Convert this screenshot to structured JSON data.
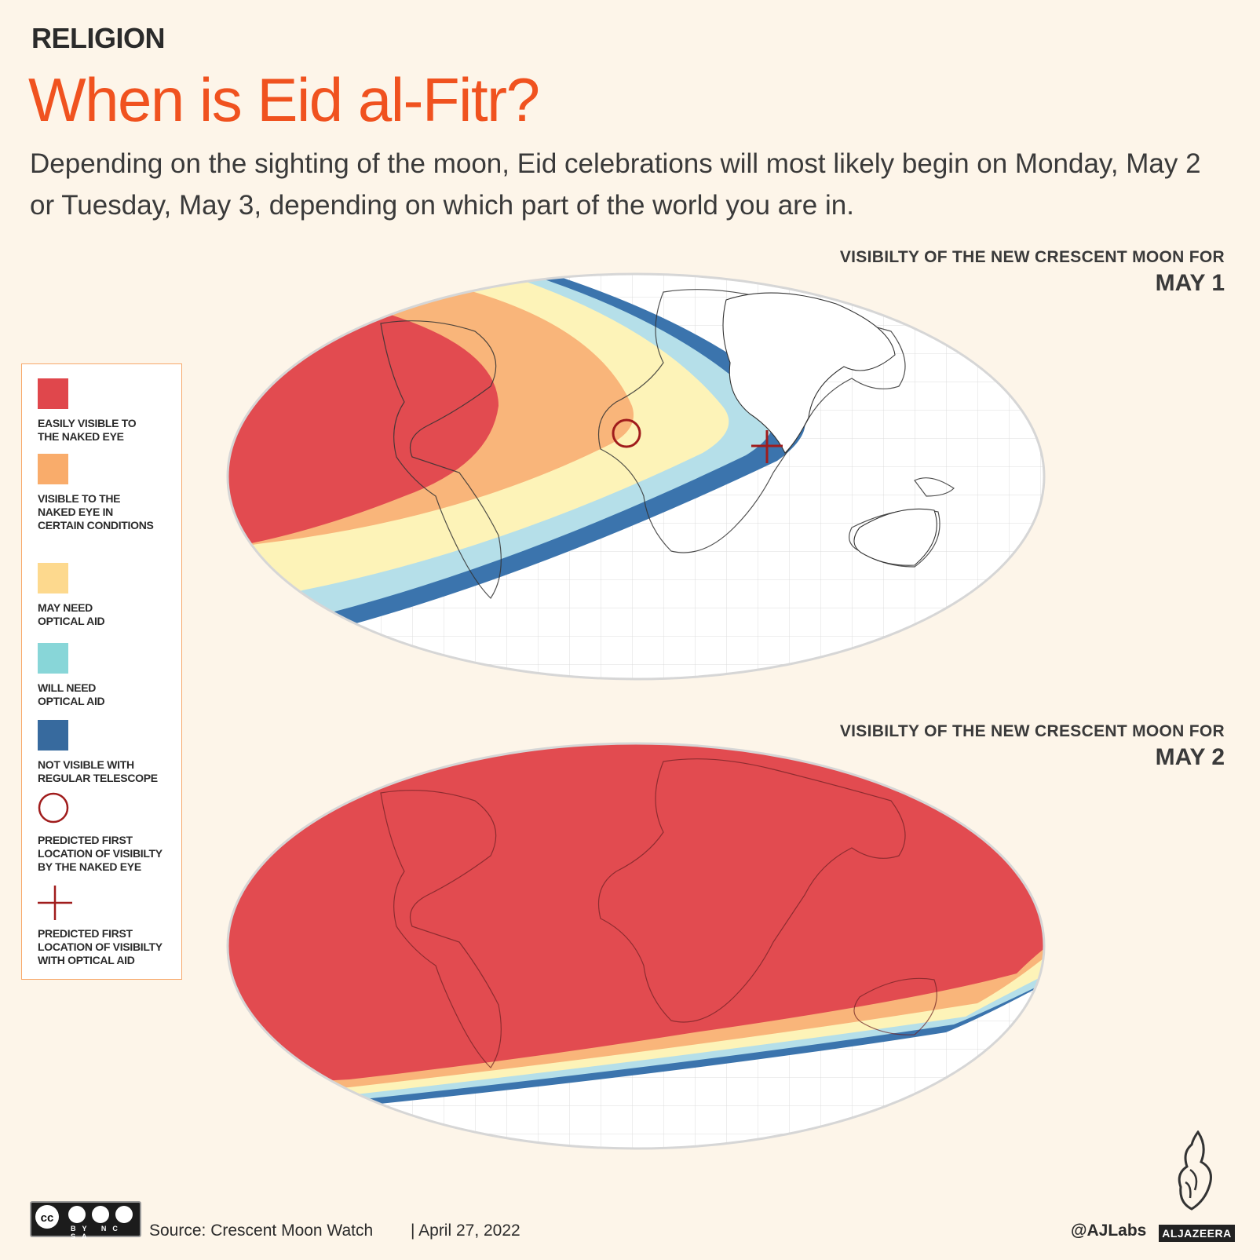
{
  "header": {
    "kicker": "RELIGION",
    "title": "When is Eid al-Fitr?",
    "dek": "Depending on the sighting of the moon, Eid celebrations will most likely begin on Monday, May 2 or Tuesday, May 3, depending on which part of the world you are in."
  },
  "maps": [
    {
      "heading": "VISIBILTY OF THE NEW CRESCENT MOON FOR",
      "date": "MAY 1"
    },
    {
      "heading": "VISIBILTY OF THE NEW CRESCENT MOON FOR",
      "date": "MAY 2"
    }
  ],
  "legend": [
    {
      "label": "EASILY VISIBLE TO\nTHE NAKED EYE",
      "color": "#e0474c"
    },
    {
      "label": "VISIBLE TO THE\nNAKED EYE IN\nCERTAIN CONDITIONS",
      "color": "#f9ac6b"
    },
    {
      "label": "MAY NEED\nOPTICAL AID",
      "color": "#fdd98e"
    },
    {
      "label": "WILL NEED\nOPTICAL AID",
      "color": "#88d6d8"
    },
    {
      "label": "NOT VISIBLE WITH\nREGULAR TELESCOPE",
      "color": "#376a9e"
    },
    {
      "label": "PREDICTED FIRST\nLOCATION OF VISIBILTY\nBY THE NAKED EYE",
      "icon": "circle-marker-icon",
      "color": "#a01c1c"
    },
    {
      "label": "PREDICTED FIRST\nLOCATION OF VISIBILTY\nWITH OPTICAL AID",
      "icon": "cross-marker-icon",
      "color": "#a01c1c"
    }
  ],
  "footer": {
    "license_text": "BY NC SA",
    "source": "Source: Crescent Moon Watch",
    "date": "|  April 27, 2022",
    "handle": "@AJLabs",
    "brand": "ALJAZEERA"
  }
}
